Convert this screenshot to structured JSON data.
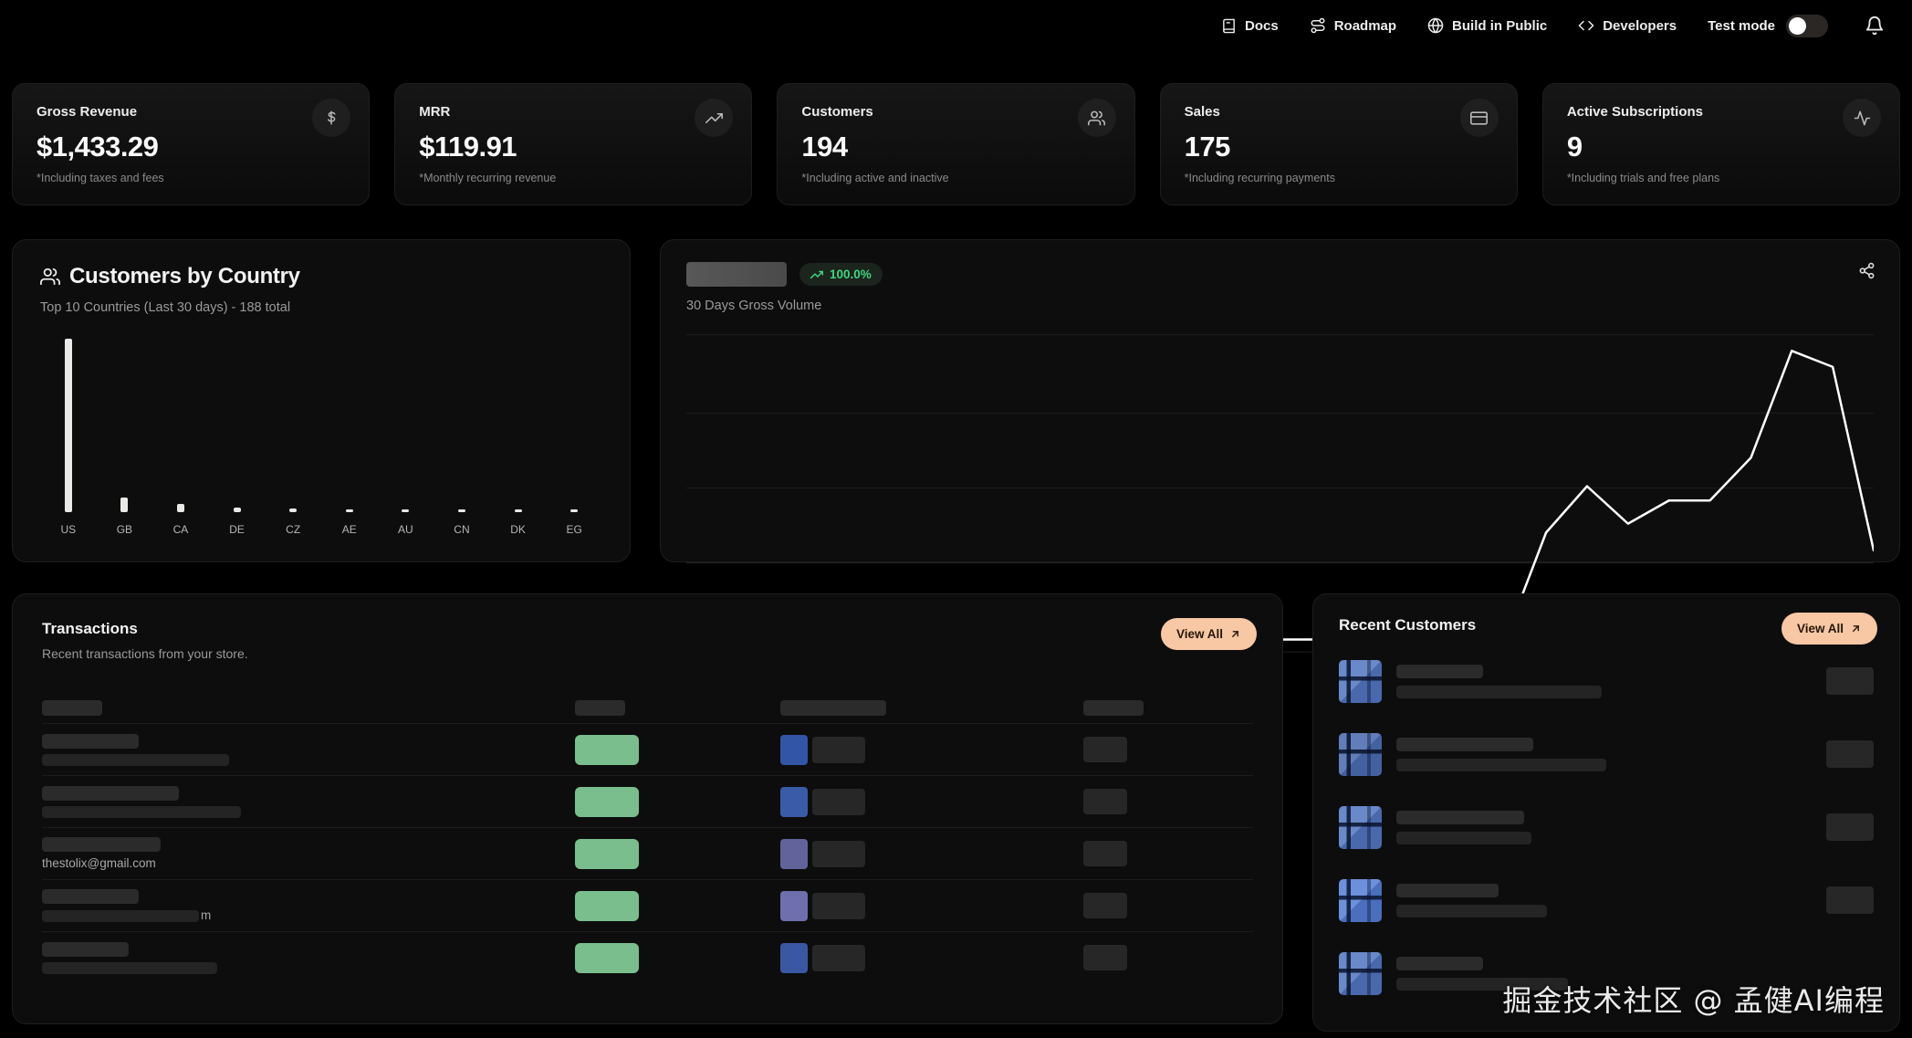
{
  "nav": {
    "items": [
      {
        "icon": "book-icon",
        "label": "Docs"
      },
      {
        "icon": "route-icon",
        "label": "Roadmap"
      },
      {
        "icon": "globe-icon",
        "label": "Build in Public"
      },
      {
        "icon": "code-icon",
        "label": "Developers"
      }
    ],
    "test_mode_label": "Test mode",
    "test_mode_state": "off"
  },
  "stats": [
    {
      "icon": "dollar-icon",
      "title": "Gross Revenue",
      "value": "$1,433.29",
      "note": "*Including taxes and fees"
    },
    {
      "icon": "trending-up-icon",
      "title": "MRR",
      "value": "$119.91",
      "note": "*Monthly recurring revenue"
    },
    {
      "icon": "users-icon",
      "title": "Customers",
      "value": "194",
      "note": "*Including active and inactive"
    },
    {
      "icon": "credit-card-icon",
      "title": "Sales",
      "value": "175",
      "note": "*Including recurring payments"
    },
    {
      "icon": "activity-icon",
      "title": "Active Subscriptions",
      "value": "9",
      "note": "*Including trials and free plans"
    }
  ],
  "country_panel": {
    "title": "Customers by Country",
    "subtitle": "Top 10 Countries (Last 30 days) - 188 total"
  },
  "volume_panel": {
    "badge": "100.0%",
    "subtitle": "30 Days Gross Volume"
  },
  "transactions": {
    "title": "Transactions",
    "subtitle": "Recent transactions from your store.",
    "view_all_label": "View All",
    "rows": [
      {
        "visible_email": ""
      },
      {
        "visible_email": ""
      },
      {
        "visible_email": "thestolix@gmail.com"
      },
      {
        "visible_email": "m"
      },
      {
        "visible_email": ""
      }
    ]
  },
  "recent_customers": {
    "title": "Recent Customers",
    "view_all_label": "View All"
  },
  "watermark": "掘金技术社区 @ 孟健AI编程",
  "colors": {
    "accent_peach": "#f8c7a4",
    "badge_green": "#7abe8e",
    "badge_blue": "#3a57a3",
    "badge_blue_muted": "#62639b",
    "positive_green": "#3ed57f",
    "bar_fill": "#e9e9e7",
    "panel_bg": "#0d0d0d",
    "grid_line": "#1f1f1f"
  },
  "chart_data": [
    {
      "type": "bar",
      "title": "Customers by Country",
      "subtitle": "Top 10 Countries (Last 30 days) - 188 total",
      "categories": [
        "US",
        "GB",
        "CA",
        "DE",
        "CZ",
        "AE",
        "AU",
        "CN",
        "DK",
        "EG"
      ],
      "values": [
        150,
        13,
        7,
        4,
        3,
        2,
        2,
        2,
        2,
        2
      ],
      "xlabel": "",
      "ylabel": "",
      "axes_hidden": true,
      "legend": false
    },
    {
      "type": "line",
      "title": "30 Days Gross Volume",
      "change_badge": "100.0%",
      "x_description": "last 30 days, unlabeled axis",
      "x": [
        1,
        2,
        3,
        4,
        5,
        6,
        7,
        8,
        9,
        10,
        11,
        12,
        13,
        14,
        15,
        16,
        17,
        18,
        19,
        20,
        21,
        22,
        23,
        24,
        25,
        26,
        27,
        28,
        29,
        30
      ],
      "values": [
        0,
        0,
        0,
        0,
        0,
        0,
        0,
        0,
        0,
        0,
        0,
        0,
        0,
        0,
        0,
        0,
        0,
        0,
        0,
        0,
        0,
        30,
        43,
        32.5,
        39,
        39,
        51,
        81,
        76.5,
        25
      ],
      "value_scale": "relative 0-100 (no tick labels shown)",
      "comparison_series": {
        "style": "dashed",
        "values_description": "previous-period baseline at 0, drawn from day 21 to 30"
      },
      "gridlines_pct_from_top": [
        2.5,
        24.5,
        45.5,
        66.5,
        91.5
      ],
      "baseline_pct_from_top": 88,
      "axes_hidden": true,
      "legend": false
    }
  ]
}
